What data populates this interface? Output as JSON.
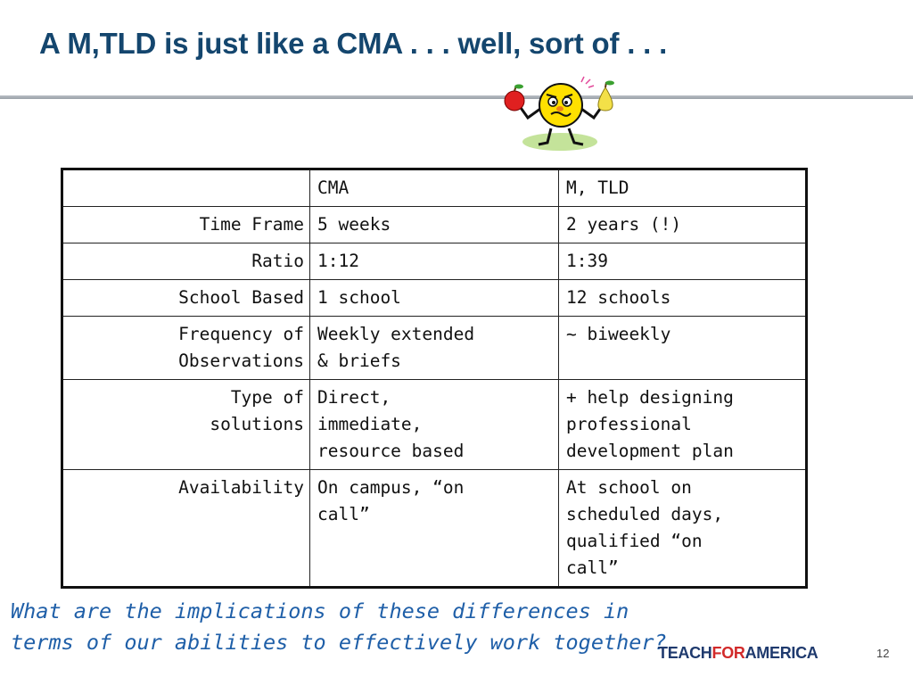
{
  "slide": {
    "title": "A  M,TLD is just like a CMA . . . well, sort of . . .",
    "question_line1": "What are the implications of these differences in",
    "question_line2": "terms of our abilities to effectively work together?",
    "logo_pre": "TEACH",
    "logo_for": "FOR",
    "logo_post": "AMERICA",
    "page_number": "12"
  },
  "table": {
    "headers": [
      "",
      "CMA",
      "M, TLD"
    ],
    "rows": [
      {
        "label": [
          "Time Frame"
        ],
        "cma": [
          "5 weeks"
        ],
        "mtld": [
          "2 years (!)"
        ]
      },
      {
        "label": [
          "Ratio"
        ],
        "cma": [
          "1:12"
        ],
        "mtld": [
          "1:39"
        ]
      },
      {
        "label": [
          "School Based"
        ],
        "cma": [
          "1 school"
        ],
        "mtld": [
          "12 schools"
        ]
      },
      {
        "label": [
          "Frequency of",
          "Observations"
        ],
        "cma": [
          "Weekly extended",
          "& briefs"
        ],
        "mtld": [
          "~ biweekly"
        ]
      },
      {
        "label": [
          "Type of",
          "solutions"
        ],
        "cma": [
          "Direct,",
          "immediate,",
          "resource based"
        ],
        "mtld": [
          "+ help designing",
          "professional",
          "development plan"
        ]
      },
      {
        "label": [
          "Availability"
        ],
        "cma": [
          "On campus, “on",
          "call”"
        ],
        "mtld": [
          "At school on",
          "scheduled days,",
          "qualified “on",
          "call”"
        ]
      }
    ]
  },
  "colors": {
    "title": "#14466e",
    "question": "#1f5fa8",
    "logo_for": "#d22a2a"
  },
  "icons": {
    "clipart": "confused-face-comparing-apple-and-pear-icon"
  }
}
